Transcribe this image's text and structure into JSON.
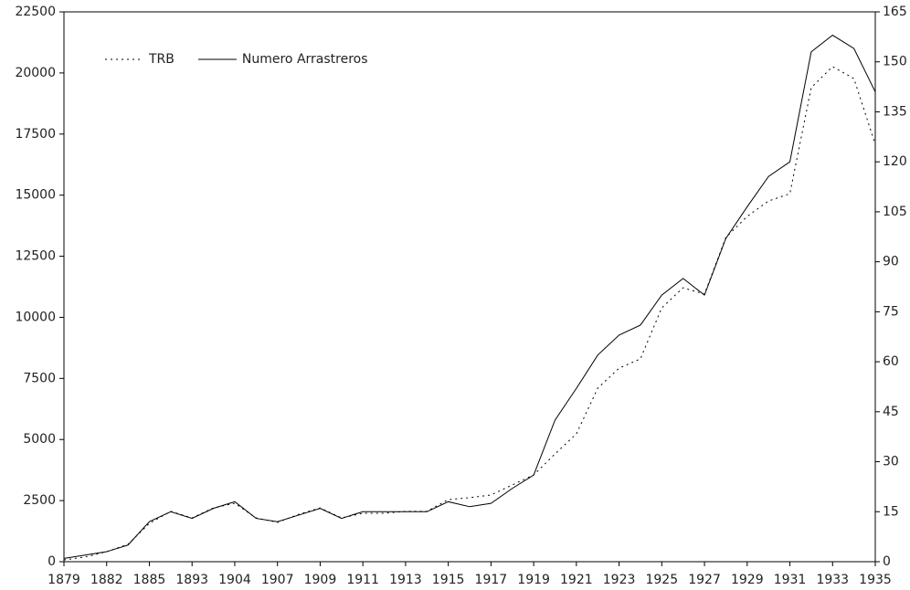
{
  "chart_data": {
    "type": "line",
    "categories": [
      "1879",
      null,
      "1882",
      null,
      "1885",
      null,
      "1893",
      null,
      "1904",
      null,
      "1907",
      null,
      "1909",
      null,
      "1911",
      null,
      "1913",
      null,
      "1915",
      null,
      "1917",
      null,
      "1919",
      null,
      "1921",
      null,
      "1923",
      null,
      "1925",
      null,
      "1927",
      null,
      "1929",
      null,
      "1931",
      null,
      "1933",
      null,
      "1935"
    ],
    "series": [
      {
        "name": "TRB",
        "color": "#000000",
        "dash": true,
        "axis": "y",
        "values": [
          75,
          190,
          410,
          710,
          1570,
          2060,
          1790,
          2200,
          2390,
          1790,
          1610,
          1940,
          2200,
          1790,
          1980,
          1980,
          2060,
          2060,
          2540,
          2620,
          2730,
          3140,
          3550,
          4410,
          5230,
          7100,
          7920,
          8300,
          10390,
          11210,
          10950,
          13270,
          14130,
          14760,
          15060,
          19400,
          20260,
          19770,
          17080
        ]
      },
      {
        "name": "Numero Arrastreros",
        "color": "#000000",
        "dash": false,
        "axis": "y2",
        "values": [
          1,
          2,
          3,
          5,
          12,
          15,
          13,
          16,
          18,
          13,
          12,
          14,
          16,
          13,
          15,
          15,
          15,
          15,
          18,
          16.5,
          17.5,
          22,
          26,
          42.5,
          52,
          62,
          68,
          71,
          80,
          85,
          80,
          97,
          106.5,
          115.6,
          120,
          153,
          158,
          154,
          141
        ]
      }
    ],
    "ylim": [
      0,
      22500
    ],
    "yticks": [
      0,
      2500,
      5000,
      7500,
      10000,
      12500,
      15000,
      17500,
      20000,
      22500
    ],
    "y2lim": [
      0,
      165
    ],
    "y2ticks": [
      0,
      15,
      30,
      45,
      60,
      75,
      90,
      105,
      120,
      135,
      150,
      165
    ],
    "legend": "upper left"
  }
}
